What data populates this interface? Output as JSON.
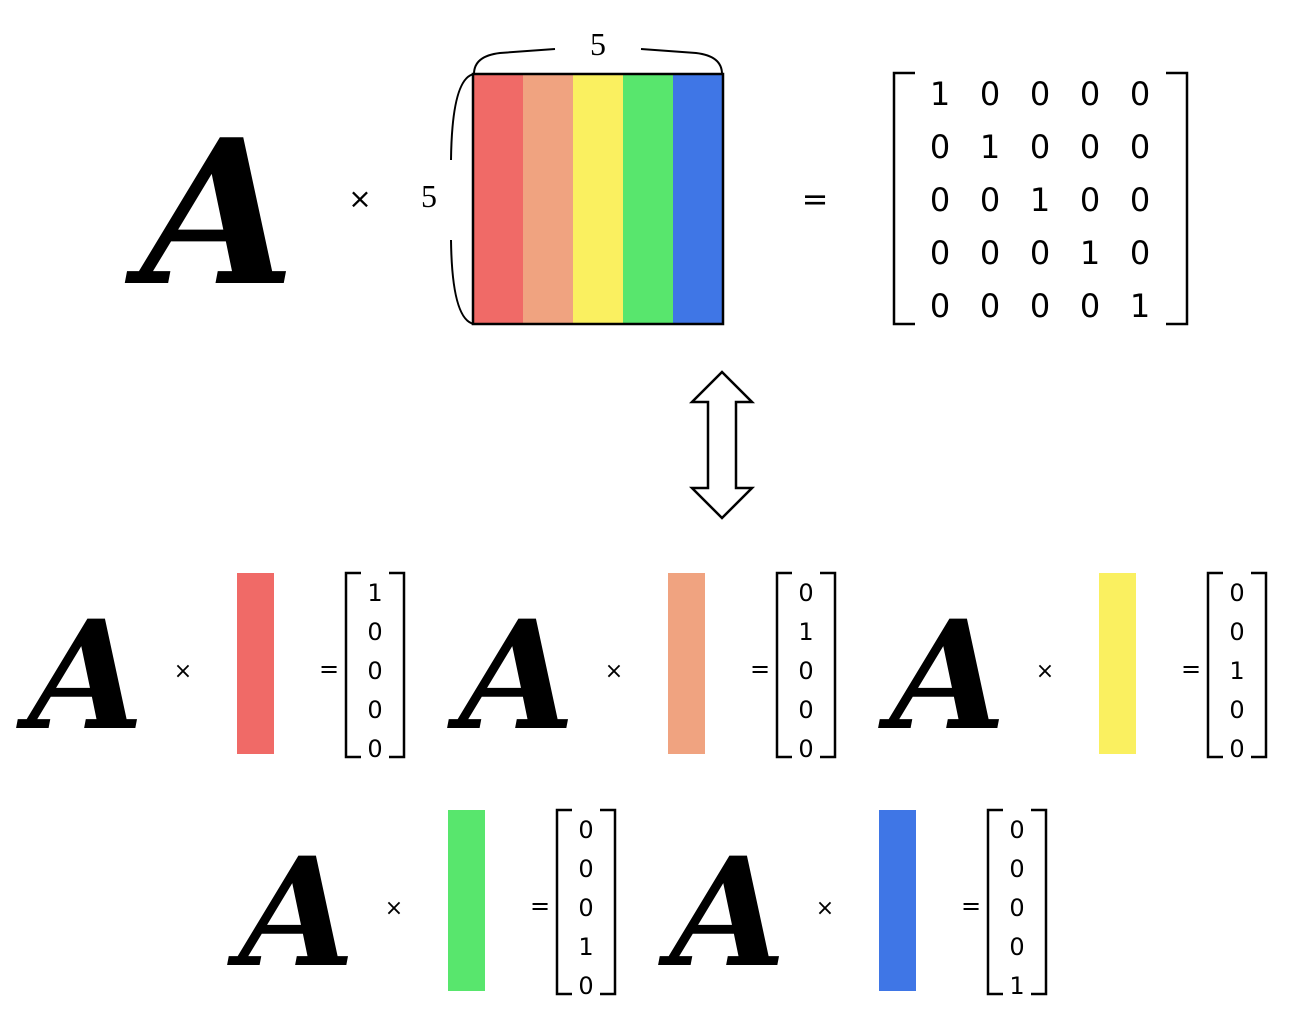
{
  "matrix_variable": "A",
  "times_symbol": "×",
  "equals_symbol": "=",
  "dimensions": {
    "rows": "5",
    "cols": "5"
  },
  "column_colors": [
    "#f06a67",
    "#f0a380",
    "#faf060",
    "#58e66d",
    "#3f76e6"
  ],
  "identity_matrix": [
    [
      "1",
      "0",
      "0",
      "0",
      "0"
    ],
    [
      "0",
      "1",
      "0",
      "0",
      "0"
    ],
    [
      "0",
      "0",
      "1",
      "0",
      "0"
    ],
    [
      "0",
      "0",
      "0",
      "1",
      "0"
    ],
    [
      "0",
      "0",
      "0",
      "0",
      "1"
    ]
  ],
  "column_equations": [
    {
      "color": "#f06a67",
      "result": [
        "1",
        "0",
        "0",
        "0",
        "0"
      ]
    },
    {
      "color": "#f0a380",
      "result": [
        "0",
        "1",
        "0",
        "0",
        "0"
      ]
    },
    {
      "color": "#faf060",
      "result": [
        "0",
        "0",
        "1",
        "0",
        "0"
      ]
    },
    {
      "color": "#58e66d",
      "result": [
        "0",
        "0",
        "0",
        "1",
        "0"
      ]
    },
    {
      "color": "#3f76e6",
      "result": [
        "0",
        "0",
        "0",
        "0",
        "1"
      ]
    }
  ]
}
